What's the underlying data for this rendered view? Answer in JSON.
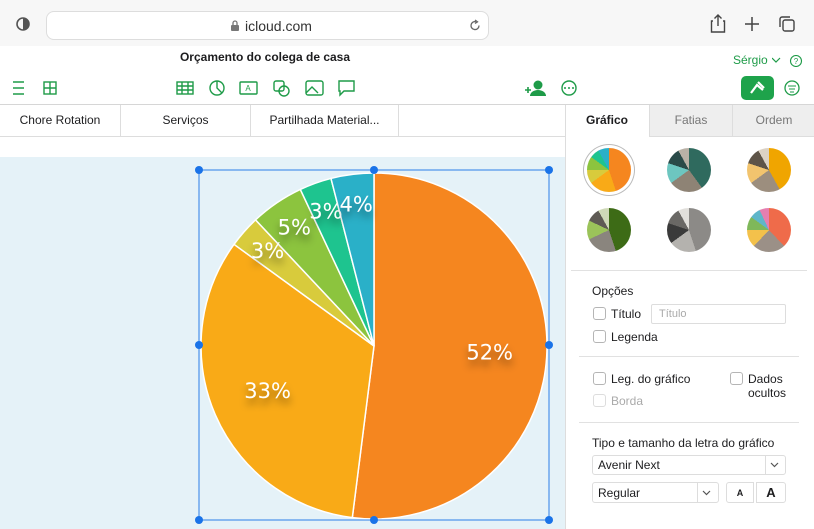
{
  "browser": {
    "url": "icloud.com"
  },
  "header": {
    "title": "Orçamento do colega de casa",
    "user": "Sérgio"
  },
  "sheet_tabs": [
    "Chore Rotation",
    "Serviços",
    "Partilhada Material..."
  ],
  "sidebar": {
    "tabs": [
      "Gráfico",
      "Fatias",
      "Ordem"
    ],
    "options_heading": "Opções",
    "title_checkbox": "Título",
    "title_placeholder": "Título",
    "legend_checkbox": "Legenda",
    "chart_legend": "Leg. do gráfico",
    "hidden_data": "Dados ocultos",
    "border": "Borda",
    "font_heading": "Tipo e tamanho da letra do gráfico",
    "font": "Avenir Next",
    "style": "Regular",
    "size_small": "A",
    "size_large": "A"
  },
  "chart_data": {
    "type": "pie",
    "categories": [
      null,
      null,
      null,
      null,
      null,
      null
    ],
    "values": [
      52,
      33,
      3,
      5,
      3,
      4
    ],
    "value_labels": [
      "52%",
      "33%",
      "3%",
      "5%",
      "3%",
      "4%"
    ],
    "colors": [
      "#f5861f",
      "#f9aa17",
      "#d8cb3c",
      "#8cc43e",
      "#1ec48f",
      "#2ab0c8"
    ]
  }
}
